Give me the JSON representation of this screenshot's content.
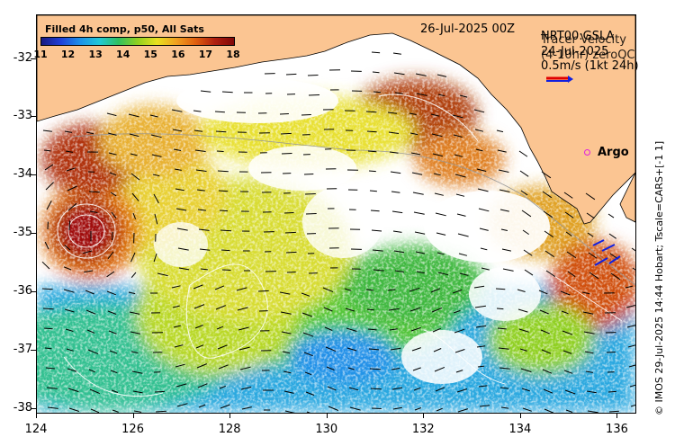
{
  "map": {
    "colorbar": {
      "title": "Filled 4h comp, p50, All Sats",
      "labels": [
        "11",
        "12",
        "13",
        "14",
        "15",
        "16",
        "17",
        "18"
      ],
      "min": 11,
      "max": 18
    },
    "datetime": "26-Jul-2025 00Z",
    "legend": {
      "line1": "NRT00:GSLA",
      "line2": "24-Jul-2025",
      "overlap1": "Tracer Velocity",
      "overlap2": "(4-10hr) zeroQC",
      "scale": "0.5m/s (1kt 24h)"
    },
    "argo_label": "Argo",
    "credit": "© IMOS 29-Jul-2025 14:44 Hobart; Tscale=CARS+[-1 1]",
    "y_axis": {
      "labels": [
        "-32",
        "-33",
        "-34",
        "-35",
        "-36",
        "-37",
        "-38"
      ],
      "min": -38.1,
      "max": -31.25
    },
    "x_axis": {
      "labels": [
        "124",
        "126",
        "128",
        "130",
        "132",
        "134",
        "136"
      ],
      "min": 124,
      "max": 136.4
    },
    "colors": {
      "land": "#fbc592",
      "scale_arrow_red": "#e00000",
      "scale_arrow_blue": "#1020e0",
      "argo": "#e020e0"
    }
  }
}
